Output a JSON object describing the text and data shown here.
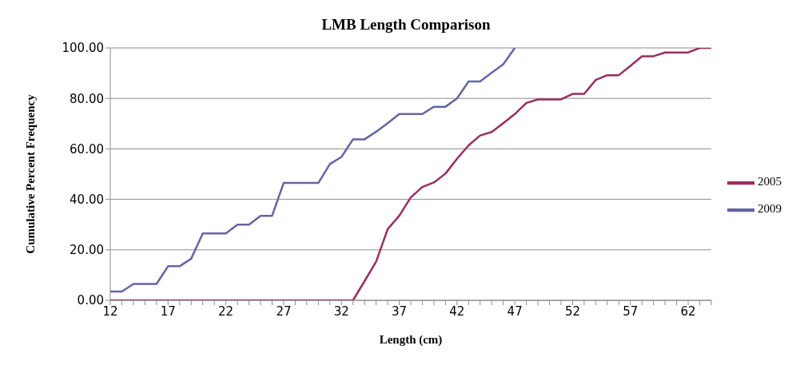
{
  "chart_data": {
    "type": "line",
    "title": "LMB Length Comparison",
    "xlabel": "Length (cm)",
    "ylabel": "Cumulative Percent Frequency",
    "categories": [
      "12",
      null,
      null,
      null,
      null,
      "17",
      null,
      null,
      null,
      null,
      "22",
      null,
      null,
      null,
      null,
      "27",
      null,
      null,
      null,
      null,
      "32",
      null,
      null,
      null,
      null,
      "37",
      null,
      null,
      null,
      null,
      "42",
      null,
      null,
      null,
      null,
      "47",
      null,
      null,
      null,
      null,
      "52",
      null,
      null,
      null,
      null,
      "57",
      null,
      null,
      null,
      null,
      "62",
      null,
      null
    ],
    "series": [
      {
        "name": "2009",
        "color": "#6466a2",
        "values": [
          3.5,
          3.5,
          6.5,
          6.5,
          6.5,
          13.5,
          13.5,
          16.5,
          26.5,
          26.5,
          26.5,
          30,
          30,
          33.5,
          33.5,
          46.5,
          46.5,
          46.5,
          46.5,
          54,
          56.8,
          63.8,
          63.8,
          66.8,
          70.2,
          73.8,
          73.8,
          73.8,
          76.7,
          76.7,
          80,
          86.7,
          86.7,
          90.2,
          93.5,
          100,
          null,
          null,
          null,
          null,
          null,
          null,
          null,
          null,
          null,
          null,
          null,
          null,
          null,
          null,
          null,
          null,
          null
        ]
      },
      {
        "name": "2005",
        "color": "#9b2d5f",
        "values": [
          0,
          0,
          0,
          0,
          0,
          0,
          0,
          0,
          0,
          0,
          0,
          0,
          0,
          0,
          0,
          0,
          0,
          0,
          0,
          0,
          0,
          0,
          7.6,
          15.3,
          28.2,
          33.5,
          40.8,
          44.9,
          46.7,
          50.2,
          56.1,
          61.4,
          65.3,
          66.7,
          70.2,
          73.8,
          78.2,
          79.6,
          79.6,
          79.6,
          81.8,
          81.8,
          87.3,
          89.2,
          89.2,
          92.9,
          96.7,
          96.7,
          98.2,
          98.2,
          98.2,
          100,
          100
        ]
      }
    ],
    "ylim": [
      0,
      100
    ],
    "yticks": [
      {
        "value": 0,
        "label": "0.00"
      },
      {
        "value": 20,
        "label": "20.00"
      },
      {
        "value": 40,
        "label": "40.00"
      },
      {
        "value": 60,
        "label": "60.00"
      },
      {
        "value": 80,
        "label": "80.00"
      },
      {
        "value": 100,
        "label": "100.00"
      }
    ],
    "grid": "y",
    "legend": "right",
    "marker": "none",
    "line_style": "solid"
  }
}
